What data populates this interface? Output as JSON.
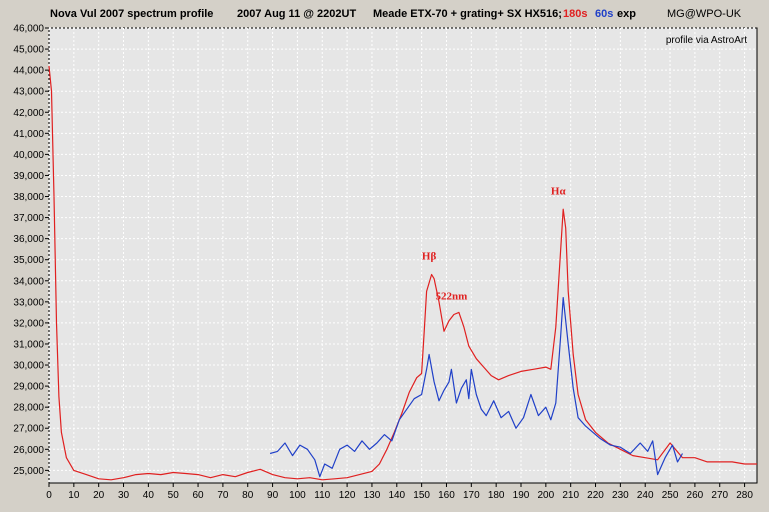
{
  "header": {
    "title": "Nova Vul 2007 spectrum profile",
    "date": "2007 Aug 11 @  2202UT",
    "setup": "Meade ETX-70 + grating+ SX HX516;",
    "exp_red": "180s",
    "exp_blue": "60s",
    "exp_suffix": "exp",
    "credit": "MG@WPO-UK",
    "watermark": "profile via AstroArt"
  },
  "colors": {
    "background": "#d4d0c8",
    "plot_bg": "#e6e6e6",
    "red_series": "#e02020",
    "blue_series": "#2040c8",
    "grid": "#ffffff"
  },
  "chart_data": {
    "type": "line",
    "title": "Nova Vul 2007 spectrum profile",
    "xlabel": "",
    "ylabel": "",
    "xlim": [
      0,
      285
    ],
    "ylim": [
      24400,
      46000
    ],
    "x_ticks": [
      0,
      10,
      20,
      30,
      40,
      50,
      60,
      70,
      80,
      90,
      100,
      110,
      120,
      130,
      140,
      150,
      160,
      170,
      180,
      190,
      200,
      210,
      220,
      230,
      240,
      250,
      260,
      270,
      280
    ],
    "y_ticks": [
      25000,
      26000,
      27000,
      28000,
      29000,
      30000,
      31000,
      32000,
      33000,
      34000,
      35000,
      36000,
      37000,
      38000,
      39000,
      40000,
      41000,
      42000,
      43000,
      44000,
      45000,
      46000
    ],
    "y_tick_labels": [
      "25,000",
      "26,000",
      "27,000",
      "28,000",
      "29,000",
      "30,000",
      "31,000",
      "32,000",
      "33,000",
      "34,000",
      "35,000",
      "36,000",
      "37,000",
      "38,000",
      "39,000",
      "40,000",
      "41,000",
      "42,000",
      "43,000",
      "44,000",
      "45,000",
      "46,000"
    ],
    "grid": true,
    "series": [
      {
        "color": "#e02020",
        "points": [
          [
            0,
            44200
          ],
          [
            1,
            43000
          ],
          [
            2,
            38000
          ],
          [
            3,
            32000
          ],
          [
            4,
            28500
          ],
          [
            5,
            26800
          ],
          [
            7,
            25600
          ],
          [
            10,
            25000
          ],
          [
            15,
            24800
          ],
          [
            20,
            24600
          ],
          [
            25,
            24550
          ],
          [
            30,
            24650
          ],
          [
            35,
            24800
          ],
          [
            40,
            24850
          ],
          [
            45,
            24800
          ],
          [
            50,
            24900
          ],
          [
            55,
            24850
          ],
          [
            60,
            24800
          ],
          [
            65,
            24650
          ],
          [
            70,
            24800
          ],
          [
            75,
            24700
          ],
          [
            80,
            24900
          ],
          [
            85,
            25050
          ],
          [
            90,
            24800
          ],
          [
            95,
            24650
          ],
          [
            100,
            24600
          ],
          [
            105,
            24650
          ],
          [
            110,
            24550
          ],
          [
            115,
            24600
          ],
          [
            120,
            24650
          ],
          [
            125,
            24800
          ],
          [
            130,
            24950
          ],
          [
            133,
            25300
          ],
          [
            136,
            26000
          ],
          [
            139,
            26800
          ],
          [
            142,
            27700
          ],
          [
            145,
            28700
          ],
          [
            148,
            29400
          ],
          [
            150,
            29600
          ],
          [
            151,
            31500
          ],
          [
            152,
            33500
          ],
          [
            154,
            34300
          ],
          [
            155,
            34100
          ],
          [
            157,
            33000
          ],
          [
            159,
            31600
          ],
          [
            161,
            32100
          ],
          [
            163,
            32400
          ],
          [
            165,
            32500
          ],
          [
            167,
            31800
          ],
          [
            169,
            30900
          ],
          [
            172,
            30300
          ],
          [
            175,
            29900
          ],
          [
            178,
            29500
          ],
          [
            181,
            29300
          ],
          [
            185,
            29500
          ],
          [
            190,
            29700
          ],
          [
            195,
            29800
          ],
          [
            200,
            29900
          ],
          [
            202,
            29800
          ],
          [
            204,
            31800
          ],
          [
            206,
            35500
          ],
          [
            207,
            37400
          ],
          [
            208,
            36500
          ],
          [
            209,
            33500
          ],
          [
            211,
            30500
          ],
          [
            213,
            28600
          ],
          [
            216,
            27400
          ],
          [
            220,
            26800
          ],
          [
            225,
            26300
          ],
          [
            230,
            26000
          ],
          [
            235,
            25700
          ],
          [
            240,
            25600
          ],
          [
            245,
            25500
          ],
          [
            250,
            26300
          ],
          [
            255,
            25600
          ],
          [
            260,
            25600
          ],
          [
            265,
            25400
          ],
          [
            270,
            25400
          ],
          [
            275,
            25400
          ],
          [
            280,
            25300
          ],
          [
            285,
            25300
          ]
        ]
      },
      {
        "color": "#2040c8",
        "points": [
          [
            89,
            25800
          ],
          [
            92,
            25900
          ],
          [
            95,
            26300
          ],
          [
            98,
            25700
          ],
          [
            101,
            26200
          ],
          [
            104,
            26000
          ],
          [
            107,
            25500
          ],
          [
            109,
            24700
          ],
          [
            111,
            25300
          ],
          [
            114,
            25100
          ],
          [
            117,
            26000
          ],
          [
            120,
            26200
          ],
          [
            123,
            25900
          ],
          [
            126,
            26400
          ],
          [
            129,
            26000
          ],
          [
            132,
            26300
          ],
          [
            135,
            26700
          ],
          [
            138,
            26400
          ],
          [
            141,
            27400
          ],
          [
            144,
            27900
          ],
          [
            147,
            28400
          ],
          [
            150,
            28600
          ],
          [
            152,
            29800
          ],
          [
            153,
            30500
          ],
          [
            155,
            29200
          ],
          [
            157,
            28300
          ],
          [
            159,
            28800
          ],
          [
            161,
            29200
          ],
          [
            162,
            29800
          ],
          [
            164,
            28200
          ],
          [
            166,
            28900
          ],
          [
            168,
            29300
          ],
          [
            169,
            28400
          ],
          [
            170,
            29800
          ],
          [
            172,
            28600
          ],
          [
            174,
            27900
          ],
          [
            176,
            27600
          ],
          [
            179,
            28300
          ],
          [
            182,
            27500
          ],
          [
            185,
            27800
          ],
          [
            188,
            27000
          ],
          [
            191,
            27500
          ],
          [
            194,
            28600
          ],
          [
            197,
            27600
          ],
          [
            200,
            28000
          ],
          [
            202,
            27400
          ],
          [
            204,
            28200
          ],
          [
            206,
            31400
          ],
          [
            207,
            33200
          ],
          [
            209,
            31000
          ],
          [
            211,
            28900
          ],
          [
            213,
            27500
          ],
          [
            216,
            27100
          ],
          [
            219,
            26800
          ],
          [
            222,
            26500
          ],
          [
            226,
            26200
          ],
          [
            230,
            26100
          ],
          [
            234,
            25800
          ],
          [
            238,
            26300
          ],
          [
            241,
            25900
          ],
          [
            243,
            26400
          ],
          [
            245,
            24800
          ],
          [
            248,
            25600
          ],
          [
            251,
            26200
          ],
          [
            253,
            25400
          ],
          [
            255,
            25800
          ]
        ]
      }
    ],
    "annotations": [
      {
        "text": "Hβ",
        "x": 153,
        "y": 35000,
        "color": "#e02020"
      },
      {
        "text": "522nm",
        "x": 162,
        "y": 33100,
        "color": "#e02020"
      },
      {
        "text": "Hα",
        "x": 205,
        "y": 38100,
        "color": "#e02020"
      }
    ]
  }
}
